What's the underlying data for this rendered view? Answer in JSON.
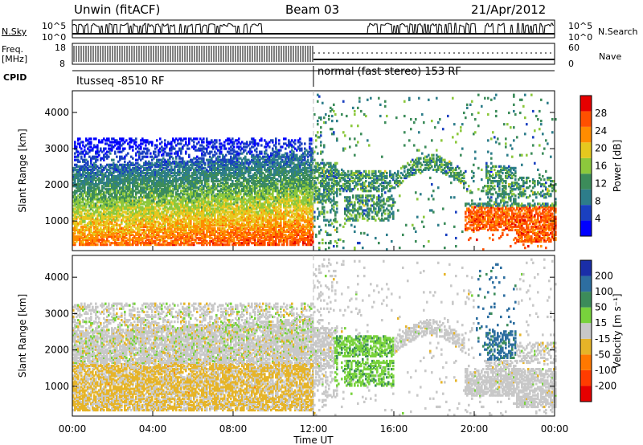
{
  "header": {
    "station": "Unwin (fitACF)",
    "beam": "Beam 03",
    "date": "21/Apr/2012"
  },
  "side_labels": {
    "nsky": "N.Sky",
    "nsearch": "N.Search",
    "freq": "Freq.",
    "freq_unit": "[MHz]",
    "nave": "Nave",
    "cpid": "CPID"
  },
  "noise_panel": {
    "left_ticks": [
      "10^5",
      "10^0"
    ],
    "right_ticks": [
      "10^5",
      "10^0"
    ]
  },
  "freq_panel": {
    "left_ticks": [
      "18",
      "8"
    ],
    "right_ticks": [
      "60",
      "0"
    ]
  },
  "cpid_panel": {
    "segments": [
      {
        "label": "Itusseq -8510 RF",
        "start_hour": 0,
        "end_hour": 12
      },
      {
        "label": "normal (fast stereo) 153 RF",
        "start_hour": 12,
        "end_hour": 24
      }
    ]
  },
  "chart_data": [
    {
      "type": "heatmap",
      "name": "power",
      "ylabel": "Slant Range [km]",
      "ylim": [
        180,
        4600
      ],
      "yticks": [
        1000,
        2000,
        3000,
        4000
      ],
      "xlim": [
        0,
        24
      ],
      "colorbar": {
        "label": "Power [dB]",
        "ticks": [
          4,
          8,
          12,
          16,
          20,
          24,
          28
        ],
        "range": [
          0,
          32
        ],
        "colors": [
          "#0000ff",
          "#1a40c0",
          "#2d7d8a",
          "#3c8c5a",
          "#8cc83c",
          "#e6c81e",
          "#ff8c00",
          "#ff5000",
          "#e60000"
        ]
      }
    },
    {
      "type": "heatmap",
      "name": "velocity",
      "ylabel": "Slant Range [km]",
      "ylim": [
        180,
        4600
      ],
      "yticks": [
        1000,
        2000,
        3000,
        4000
      ],
      "xlim": [
        0,
        24
      ],
      "xlabel": "Time UT",
      "xticks": [
        "00:00",
        "04:00",
        "08:00",
        "12:00",
        "16:00",
        "20:00",
        "00:00"
      ],
      "colorbar": {
        "label": "Velocity [m s⁻¹]",
        "ticks": [
          "200",
          "100",
          "50",
          "15",
          "-15",
          "-50",
          "-100",
          "-200"
        ],
        "colors": [
          "#1a2ea8",
          "#2d6ea0",
          "#3c8c5a",
          "#78d23c",
          "#c8c8c8",
          "#e6b428",
          "#ff7800",
          "#ff3c00",
          "#e60000"
        ]
      }
    }
  ]
}
